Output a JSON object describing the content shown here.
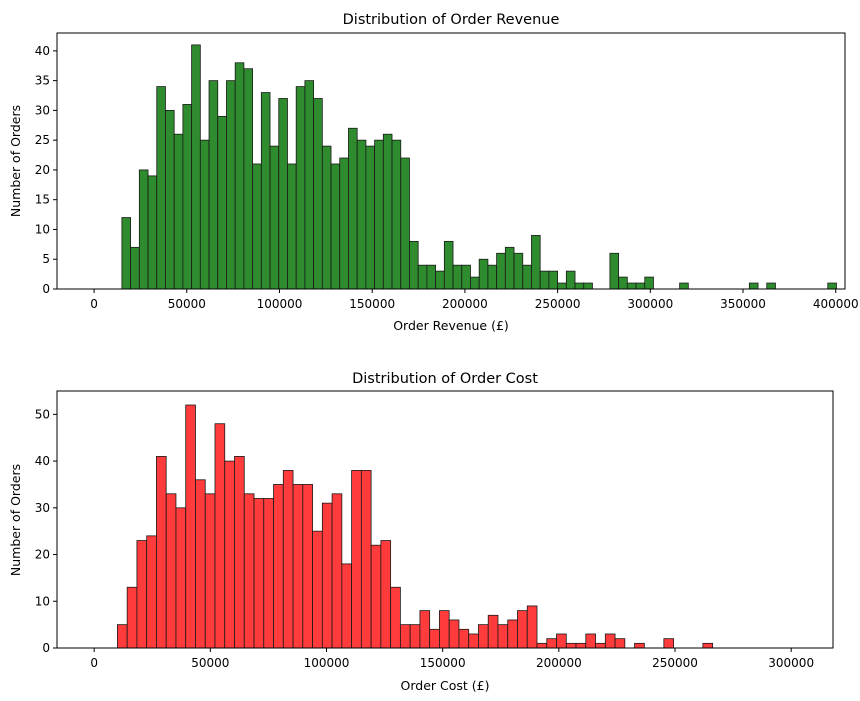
{
  "colors": {
    "revenue": "#2e8b2e",
    "cost": "#ff3b3b",
    "edge": "#1a1a1a"
  },
  "chart_data": [
    {
      "type": "bar",
      "title": "Distribution of Order Revenue",
      "xlabel": "Order Revenue (£)",
      "ylabel": "Number of Orders",
      "xlim": [
        -20000,
        405000
      ],
      "ylim": [
        0,
        43
      ],
      "bin_start": 15000,
      "bin_width": 4700,
      "xticks": [
        0,
        50000,
        100000,
        150000,
        200000,
        250000,
        300000,
        350000,
        400000
      ],
      "yticks": [
        0,
        5,
        10,
        15,
        20,
        25,
        30,
        35,
        40
      ],
      "values": [
        12,
        7,
        20,
        19,
        34,
        30,
        26,
        31,
        41,
        25,
        35,
        29,
        35,
        38,
        37,
        21,
        33,
        24,
        32,
        21,
        34,
        35,
        32,
        24,
        21,
        22,
        27,
        25,
        24,
        25,
        26,
        25,
        22,
        8,
        4,
        4,
        3,
        8,
        4,
        4,
        2,
        5,
        4,
        6,
        7,
        6,
        4,
        9,
        3,
        3,
        1,
        3,
        1,
        1,
        0,
        0,
        6,
        2,
        1,
        1,
        2,
        0,
        0,
        0,
        1,
        0,
        0,
        0,
        0,
        0,
        0,
        0,
        1,
        0,
        1,
        0,
        0,
        0,
        0,
        0,
        0,
        1
      ]
    },
    {
      "type": "bar",
      "title": "Distribution of Order Cost",
      "xlabel": "Order Cost (£)",
      "ylabel": "Number of Orders",
      "xlim": [
        -16000,
        318000
      ],
      "ylim": [
        0,
        55
      ],
      "bin_start": 10000,
      "bin_width": 4200,
      "xticks": [
        0,
        50000,
        100000,
        150000,
        200000,
        250000,
        300000
      ],
      "yticks": [
        0,
        10,
        20,
        30,
        40,
        50
      ],
      "values": [
        5,
        13,
        23,
        24,
        41,
        33,
        30,
        52,
        36,
        33,
        48,
        40,
        41,
        33,
        32,
        32,
        35,
        38,
        35,
        35,
        25,
        31,
        33,
        18,
        38,
        38,
        22,
        23,
        13,
        5,
        5,
        8,
        4,
        8,
        6,
        4,
        3,
        5,
        7,
        5,
        6,
        8,
        9,
        1,
        2,
        3,
        1,
        1,
        3,
        1,
        3,
        2,
        0,
        1,
        0,
        0,
        2,
        0,
        0,
        0,
        1
      ]
    }
  ]
}
